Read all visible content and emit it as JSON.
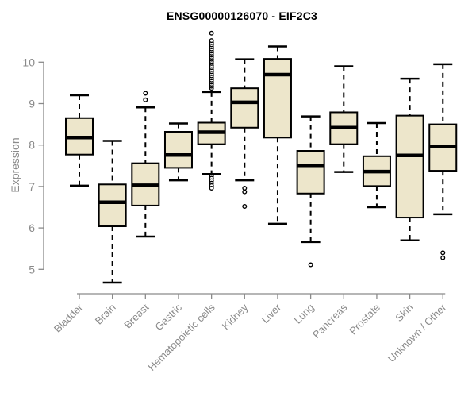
{
  "title": "ENSG00000126070 - EIF2C3",
  "y_axis": {
    "label": "Expression",
    "tick_labels": [
      "5",
      "6",
      "7",
      "8",
      "9",
      "10"
    ]
  },
  "colors": {
    "background": "#ffffff",
    "box_fill": "#ede6cb",
    "box_border": "#000000",
    "median": "#000000",
    "whisker": "#000000",
    "outlier": "#000000",
    "axis_gray": "#8a8a8a",
    "title_color": "#000000"
  },
  "chart_data": {
    "type": "boxplot",
    "title": "ENSG00000126070 - EIF2C3",
    "xlabel": "",
    "ylabel": "Expression",
    "yticks": [
      5,
      6,
      7,
      8,
      9,
      10
    ],
    "ylim_drawn": [
      5,
      10
    ],
    "grid": false,
    "legend": false,
    "categories": [
      "Bladder",
      "Brain",
      "Breast",
      "Gastric",
      "Hematopoietic cells",
      "Kidney",
      "Liver",
      "Lung",
      "Pancreas",
      "Prostate",
      "Skin",
      "Unknown / Other"
    ],
    "boxes": [
      {
        "category": "Bladder",
        "whisker_low": 7.02,
        "q1": 7.77,
        "median": 8.18,
        "q3": 8.65,
        "whisker_high": 9.2,
        "outliers_low": [],
        "outliers_high": []
      },
      {
        "category": "Brain",
        "whisker_low": 4.68,
        "q1": 6.04,
        "median": 6.62,
        "q3": 7.05,
        "whisker_high": 8.1,
        "outliers_low": [],
        "outliers_high": []
      },
      {
        "category": "Breast",
        "whisker_low": 5.79,
        "q1": 6.54,
        "median": 7.03,
        "q3": 7.56,
        "whisker_high": 8.91,
        "outliers_low": [],
        "outliers_high": [
          9.09,
          9.25
        ]
      },
      {
        "category": "Gastric",
        "whisker_low": 7.15,
        "q1": 7.45,
        "median": 7.76,
        "q3": 8.32,
        "whisker_high": 8.52,
        "outliers_low": [],
        "outliers_high": []
      },
      {
        "category": "Hematopoietic cells",
        "whisker_low": 7.3,
        "q1": 8.02,
        "median": 8.31,
        "q3": 8.54,
        "whisker_high": 9.28,
        "outliers_low": [
          7.25,
          7.2,
          7.14,
          7.08,
          7.02,
          6.96
        ],
        "outliers_high": [
          9.37,
          9.42,
          9.47,
          9.52,
          9.57,
          9.62,
          9.67,
          9.72,
          9.77,
          9.82,
          9.87,
          9.92,
          9.97,
          10.02,
          10.07,
          10.12,
          10.17,
          10.22,
          10.27,
          10.32,
          10.37,
          10.42,
          10.47,
          10.52,
          10.7
        ]
      },
      {
        "category": "Kidney",
        "whisker_low": 7.15,
        "q1": 8.42,
        "median": 9.03,
        "q3": 9.37,
        "whisker_high": 10.07,
        "outliers_low": [
          6.96,
          6.87,
          6.52
        ],
        "outliers_high": []
      },
      {
        "category": "Liver",
        "whisker_low": 6.1,
        "q1": 8.18,
        "median": 9.7,
        "q3": 10.08,
        "whisker_high": 10.38,
        "outliers_low": [],
        "outliers_high": []
      },
      {
        "category": "Lung",
        "whisker_low": 5.66,
        "q1": 6.83,
        "median": 7.51,
        "q3": 7.86,
        "whisker_high": 8.69,
        "outliers_low": [
          5.11
        ],
        "outliers_high": []
      },
      {
        "category": "Pancreas",
        "whisker_low": 7.35,
        "q1": 8.02,
        "median": 8.42,
        "q3": 8.79,
        "whisker_high": 9.9,
        "outliers_low": [],
        "outliers_high": []
      },
      {
        "category": "Prostate",
        "whisker_low": 6.5,
        "q1": 7.01,
        "median": 7.36,
        "q3": 7.73,
        "whisker_high": 8.53,
        "outliers_low": [],
        "outliers_high": []
      },
      {
        "category": "Skin",
        "whisker_low": 5.7,
        "q1": 6.25,
        "median": 7.75,
        "q3": 8.71,
        "whisker_high": 9.6,
        "outliers_low": [],
        "outliers_high": []
      },
      {
        "category": "Unknown / Other",
        "whisker_low": 6.33,
        "q1": 7.38,
        "median": 7.97,
        "q3": 8.5,
        "whisker_high": 9.95,
        "outliers_low": [
          5.28,
          5.4
        ],
        "outliers_high": []
      }
    ]
  }
}
